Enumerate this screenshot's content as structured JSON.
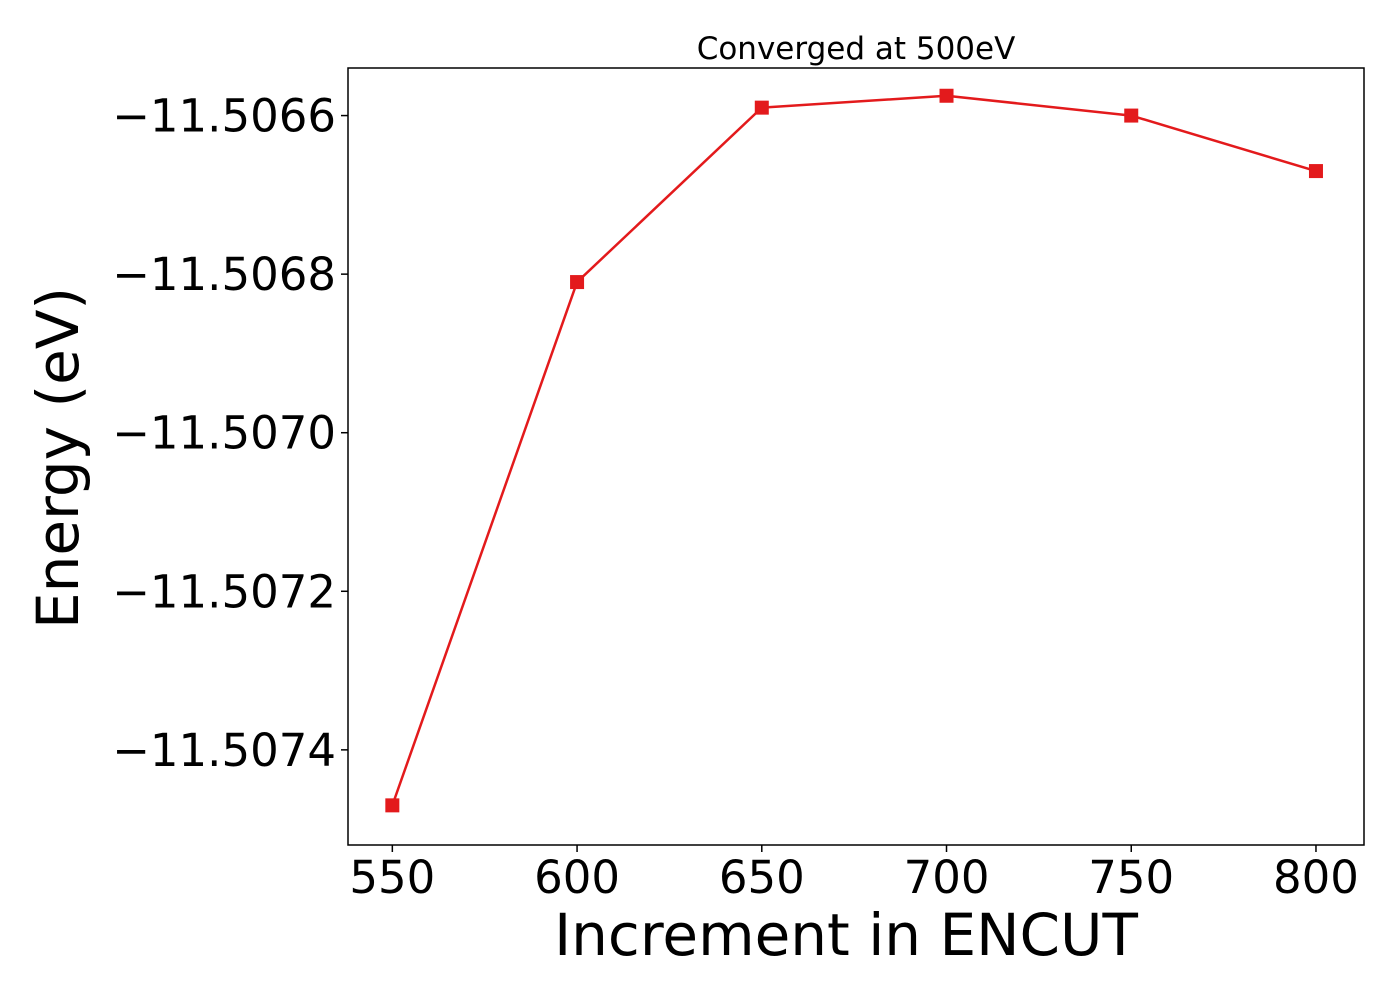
{
  "chart_data": {
    "type": "line",
    "title": "Converged at 500eV",
    "xlabel": "Increment in ENCUT",
    "ylabel": "Energy (eV)",
    "x": [
      550,
      600,
      650,
      700,
      750,
      800
    ],
    "series": [
      {
        "values": [
          -11.50747,
          -11.50681,
          -11.50659,
          -11.506575,
          -11.5066,
          -11.50667
        ],
        "color": "#e31a1c",
        "marker": "square"
      }
    ],
    "xlim": [
      538,
      813
    ],
    "ylim": [
      -11.50752,
      -11.50654
    ],
    "xticks": [
      550,
      600,
      650,
      700,
      750,
      800
    ],
    "xtick_labels": [
      "550",
      "600",
      "650",
      "700",
      "750",
      "800"
    ],
    "yticks": [
      -11.5066,
      -11.5068,
      -11.507,
      -11.5072,
      -11.5074
    ],
    "ytick_labels": [
      "−11.5066",
      "−11.5068",
      "−11.5070",
      "−11.5072",
      "−11.5074"
    ],
    "grid": false,
    "legend": "none"
  }
}
